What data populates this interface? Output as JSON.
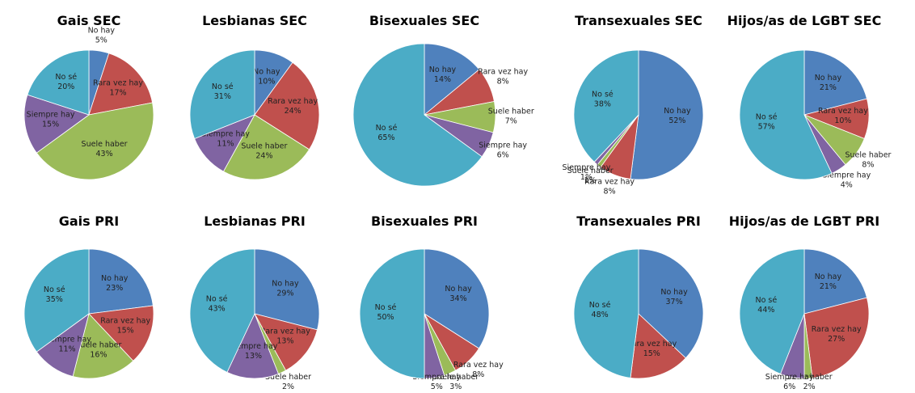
{
  "chart_data": [
    {
      "type": "pie",
      "title": "Gais SEC",
      "categories": [
        "No hay",
        "Rara vez hay",
        "Suele haber",
        "Siempre hay",
        "No sé"
      ],
      "values": [
        5,
        17,
        43,
        15,
        20
      ],
      "value_labels": [
        "5%",
        "17%",
        "43%",
        "15%",
        "20%"
      ],
      "colors": [
        "#4f81bd",
        "#c0504d",
        "#9bbb59",
        "#8064a2",
        "#4bacc6"
      ]
    },
    {
      "type": "pie",
      "title": "Lesbianas SEC",
      "categories": [
        "No hay",
        "Rara vez hay",
        "Suele haber",
        "Siempre hay",
        "No sé"
      ],
      "values": [
        10,
        24,
        24,
        11,
        31
      ],
      "value_labels": [
        "10%",
        "24%",
        "24%",
        "11%",
        "31%"
      ],
      "colors": [
        "#4f81bd",
        "#c0504d",
        "#9bbb59",
        "#8064a2",
        "#4bacc6"
      ]
    },
    {
      "type": "pie",
      "title": "Bisexuales SEC",
      "categories": [
        "No hay",
        "Rara vez hay",
        "Suele haber",
        "Siempre hay",
        "No sé"
      ],
      "values": [
        14,
        8,
        7,
        6,
        65
      ],
      "value_labels": [
        "14%",
        "8%",
        "7%",
        "6%",
        "65%"
      ],
      "colors": [
        "#4f81bd",
        "#c0504d",
        "#9bbb59",
        "#8064a2",
        "#4bacc6"
      ]
    },
    {
      "type": "pie",
      "title": "Transexuales SEC",
      "categories": [
        "No hay",
        "Rara vez hay",
        "Suele haber",
        "Siempre hay",
        "No sé"
      ],
      "values": [
        52,
        8,
        1,
        1,
        38
      ],
      "value_labels": [
        "52%",
        "8%",
        "1%",
        "1%",
        "38%"
      ],
      "colors": [
        "#4f81bd",
        "#c0504d",
        "#9bbb59",
        "#8064a2",
        "#4bacc6"
      ]
    },
    {
      "type": "pie",
      "title": "Hijos/as de LGBT SEC",
      "categories": [
        "No hay",
        "Rara vez hay",
        "Suele haber",
        "Siempre hay",
        "No sé"
      ],
      "values": [
        21,
        10,
        8,
        4,
        57
      ],
      "value_labels": [
        "21%",
        "10%",
        "8%",
        "4%",
        "57%"
      ],
      "colors": [
        "#4f81bd",
        "#c0504d",
        "#9bbb59",
        "#8064a2",
        "#4bacc6"
      ]
    },
    {
      "type": "pie",
      "title": "Gais PRI",
      "categories": [
        "No hay",
        "Rara vez hay",
        "Suele haber",
        "Siempre hay",
        "No sé"
      ],
      "values": [
        23,
        15,
        16,
        11,
        35
      ],
      "value_labels": [
        "23%",
        "15%",
        "16%",
        "11%",
        "35%"
      ],
      "colors": [
        "#4f81bd",
        "#c0504d",
        "#9bbb59",
        "#8064a2",
        "#4bacc6"
      ]
    },
    {
      "type": "pie",
      "title": "Lesbianas PRI",
      "categories": [
        "No hay",
        "Rara vez hay",
        "Suele haber",
        "Siempre hay",
        "No sé"
      ],
      "values": [
        29,
        13,
        2,
        13,
        43
      ],
      "value_labels": [
        "29%",
        "13%",
        "2%",
        "13%",
        "43%"
      ],
      "colors": [
        "#4f81bd",
        "#c0504d",
        "#9bbb59",
        "#8064a2",
        "#4bacc6"
      ]
    },
    {
      "type": "pie",
      "title": "Bisexuales PRI",
      "categories": [
        "No hay",
        "Rara vez hay",
        "Suele haber",
        "Siempre hay",
        "No sé"
      ],
      "values": [
        34,
        8,
        3,
        5,
        50
      ],
      "value_labels": [
        "34%",
        "8%",
        "3%",
        "5%",
        "50%"
      ],
      "colors": [
        "#4f81bd",
        "#c0504d",
        "#9bbb59",
        "#8064a2",
        "#4bacc6"
      ]
    },
    {
      "type": "pie",
      "title": "Transexuales PRI",
      "categories": [
        "No hay",
        "Rara vez hay",
        "No sé"
      ],
      "values": [
        37,
        15,
        48
      ],
      "value_labels": [
        "37%",
        "15%",
        "48%"
      ],
      "colors": [
        "#4f81bd",
        "#c0504d",
        "#4bacc6"
      ]
    },
    {
      "type": "pie",
      "title": "Hijos/as de LGBT PRI",
      "categories": [
        "No hay",
        "Rara vez hay",
        "Suele haber",
        "Siempre hay",
        "No sé"
      ],
      "values": [
        21,
        27,
        2,
        6,
        44
      ],
      "value_labels": [
        "21%",
        "27%",
        "2%",
        "6%",
        "44%"
      ],
      "colors": [
        "#4f81bd",
        "#c0504d",
        "#9bbb59",
        "#8064a2",
        "#4bacc6"
      ]
    }
  ]
}
